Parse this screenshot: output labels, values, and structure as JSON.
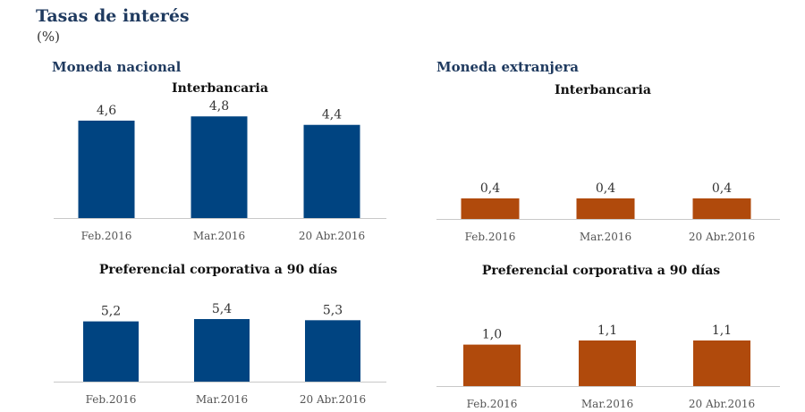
{
  "header": {
    "title": "Tasas de interés",
    "unit": "(%)"
  },
  "sections": {
    "nacional": "Moneda nacional",
    "extranjera": "Moneda extranjera"
  },
  "colors": {
    "nacional": "#004481",
    "extranjera": "#b04a0c",
    "axis": "#c8c8c8"
  },
  "chart_data": [
    {
      "type": "bar",
      "title": "Interbancaria",
      "categories": [
        "Feb.2016",
        "Mar.2016",
        "20 Abr.2016"
      ],
      "values": [
        4.6,
        4.8,
        4.4
      ],
      "labels": [
        "4,6",
        "4,8",
        "4,4"
      ],
      "group": "Moneda nacional"
    },
    {
      "type": "bar",
      "title": "Preferencial corporativa a 90 días",
      "categories": [
        "Feb.2016",
        "Mar.2016",
        "20 Abr.2016"
      ],
      "values": [
        5.2,
        5.4,
        5.3
      ],
      "labels": [
        "5,2",
        "5,4",
        "5,3"
      ],
      "group": "Moneda nacional"
    },
    {
      "type": "bar",
      "title": "Interbancaria",
      "categories": [
        "Feb.2016",
        "Mar.2016",
        "20 Abr.2016"
      ],
      "values": [
        0.4,
        0.4,
        0.4
      ],
      "labels": [
        "0,4",
        "0,4",
        "0,4"
      ],
      "group": "Moneda extranjera"
    },
    {
      "type": "bar",
      "title": "Preferencial corporativa a 90 días",
      "categories": [
        "Feb.2016",
        "Mar.2016",
        "20 Abr.2016"
      ],
      "values": [
        1.0,
        1.1,
        1.1
      ],
      "labels": [
        "1,0",
        "1,1",
        "1,1"
      ],
      "group": "Moneda extranjera"
    }
  ]
}
